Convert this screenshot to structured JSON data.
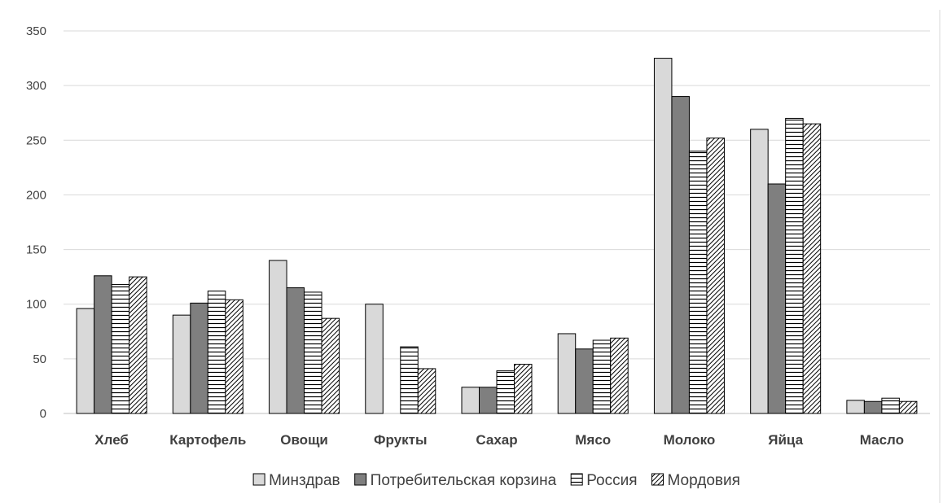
{
  "chart_data": {
    "type": "bar",
    "title": "",
    "xlabel": "",
    "ylabel": "",
    "ylim": [
      0,
      350
    ],
    "yticks": [
      0,
      50,
      100,
      150,
      200,
      250,
      300,
      350
    ],
    "grid": true,
    "legend_position": "bottom",
    "categories": [
      "Хлеб",
      "Картофель",
      "Овощи",
      "Фрукты",
      "Сахар",
      "Мясо",
      "Молоко",
      "Яйца",
      "Масло"
    ],
    "series": [
      {
        "name": "Минздрав",
        "pattern": "solid-light",
        "values": [
          96,
          90,
          140,
          100,
          24,
          73,
          325,
          260,
          12
        ]
      },
      {
        "name": "Потребительская корзина",
        "pattern": "solid-dark",
        "values": [
          126,
          101,
          115,
          0,
          24,
          59,
          290,
          210,
          11
        ]
      },
      {
        "name": "Россия",
        "pattern": "horizontal-lines",
        "values": [
          118,
          112,
          111,
          61,
          39,
          67,
          240,
          270,
          14
        ]
      },
      {
        "name": "Мордовия",
        "pattern": "diagonal-lines",
        "values": [
          125,
          104,
          87,
          41,
          45,
          69,
          252,
          265,
          11
        ]
      }
    ],
    "colors": {
      "solid-light": "#d9d9d9",
      "solid-dark": "#7f7f7f",
      "pattern-line": "#000000",
      "grid": "#d9d9d9",
      "text": "#404040"
    }
  }
}
